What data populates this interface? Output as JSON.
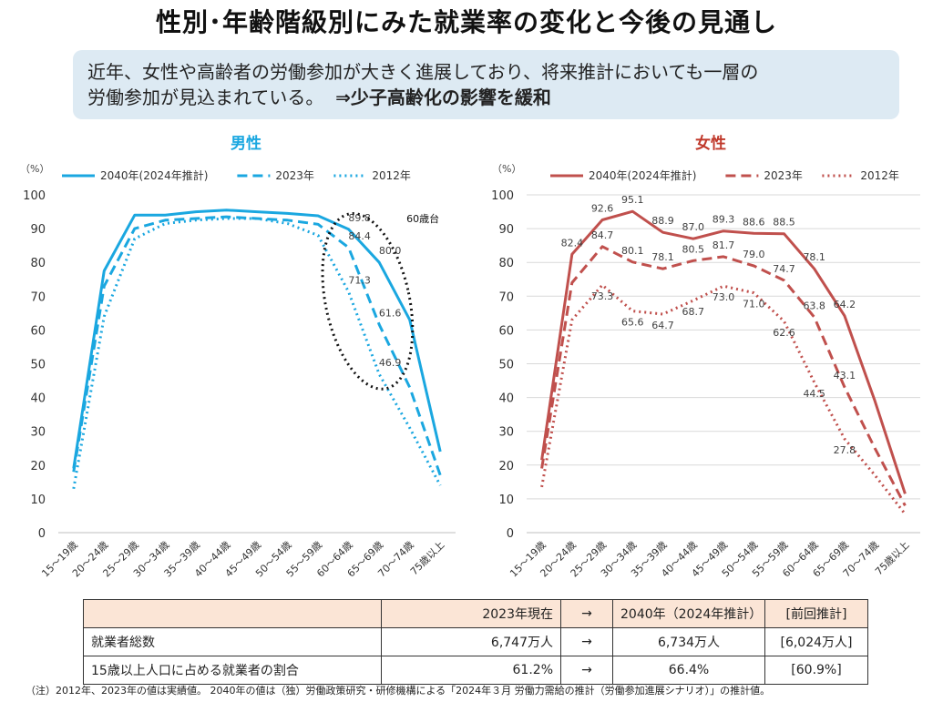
{
  "title": "性別･年齢階級別にみた就業率の変化と今後の見通し",
  "summary": {
    "line1": "近年、女性や高齢者の労働参加が大きく進展しており、将来推計においても一層の",
    "line2_prefix": "労働参加が見込まれている。",
    "line2_strong": "⇒少子高齢化の影響を緩和"
  },
  "colors": {
    "male": "#1aa7e0",
    "female": "#c0504d",
    "male_title": "#1aa7e0",
    "female_title": "#c0392b",
    "grid": "#d9d9d9",
    "summary_bg": "#ddeaf3",
    "table_header_bg": "#fbe5d6"
  },
  "chart_data": [
    {
      "type": "line",
      "title": "男性",
      "unit_label": "（%）",
      "ylim": [
        0,
        100
      ],
      "yticks": [
        0,
        10,
        20,
        30,
        40,
        50,
        60,
        70,
        80,
        90,
        100
      ],
      "grid": false,
      "legend_position": "top",
      "categories": [
        "15～19歳",
        "20～24歳",
        "25～29歳",
        "30～34歳",
        "35～39歳",
        "40～44歳",
        "45～49歳",
        "50～54歳",
        "55～59歳",
        "60～64歳",
        "65～69歳",
        "70～74歳",
        "75歳以上"
      ],
      "series": [
        {
          "name": "2040年(2024年推計)",
          "style": "solid",
          "values": [
            19.0,
            77.5,
            94.0,
            94.0,
            95.0,
            95.5,
            95.0,
            94.5,
            93.8,
            89.8,
            80.0,
            63.0,
            24.0
          ],
          "labels": {
            "9": "89.8",
            "10": "80.0"
          }
        },
        {
          "name": "2023年",
          "style": "dashed",
          "values": [
            18.0,
            73.0,
            90.0,
            92.5,
            93.0,
            93.5,
            93.0,
            92.5,
            91.3,
            84.4,
            61.6,
            43.0,
            17.0
          ],
          "labels": {
            "9": "84.4",
            "10": "61.6"
          }
        },
        {
          "name": "2012年",
          "style": "dotted",
          "values": [
            13.0,
            64.0,
            87.0,
            91.5,
            92.5,
            93.0,
            93.0,
            91.5,
            88.0,
            71.3,
            46.9,
            31.0,
            14.0
          ],
          "labels": {
            "9": "71.3",
            "10": "46.9"
          }
        }
      ],
      "annotation": {
        "text": "60歳台",
        "shape": "dotted-ellipse",
        "around_categories": [
          "60～64歳",
          "65～69歳"
        ]
      }
    },
    {
      "type": "line",
      "title": "女性",
      "unit_label": "（%）",
      "ylim": [
        0,
        100
      ],
      "yticks": [
        0,
        10,
        20,
        30,
        40,
        50,
        60,
        70,
        80,
        90,
        100
      ],
      "grid": true,
      "legend_position": "top",
      "categories": [
        "15～19歳",
        "20～24歳",
        "25～29歳",
        "30～34歳",
        "35～39歳",
        "40～44歳",
        "45～49歳",
        "50～54歳",
        "55～59歳",
        "60～64歳",
        "65～69歳",
        "70～74歳",
        "75歳以上"
      ],
      "series": [
        {
          "name": "2040年(2024年推計)",
          "style": "solid",
          "values": [
            21.5,
            82.4,
            92.6,
            95.1,
            88.9,
            87.0,
            89.3,
            88.6,
            88.5,
            78.1,
            64.2,
            39.0,
            11.5
          ],
          "labels": {
            "1": "82.4",
            "2": "92.6",
            "3": "95.1",
            "4": "88.9",
            "5": "87.0",
            "6": "89.3",
            "7": "88.6",
            "8": "88.5",
            "9": "78.1",
            "10": "64.2"
          }
        },
        {
          "name": "2023年",
          "style": "dashed",
          "values": [
            19.0,
            74.0,
            84.7,
            80.1,
            78.1,
            80.5,
            81.7,
            79.0,
            74.7,
            63.8,
            43.1,
            25.0,
            8.0
          ],
          "labels": {
            "2": "84.7",
            "3": "80.1",
            "4": "78.1",
            "5": "80.5",
            "6": "81.7",
            "7": "79.0",
            "8": "74.7",
            "9": "63.8",
            "10": "43.1"
          }
        },
        {
          "name": "2012年",
          "style": "dotted",
          "values": [
            13.5,
            63.0,
            73.3,
            65.6,
            64.7,
            68.7,
            73.0,
            71.0,
            62.6,
            44.5,
            27.8,
            17.0,
            5.5
          ],
          "labels": {
            "2": "73.3",
            "3": "65.6",
            "4": "64.7",
            "5": "68.7",
            "6": "73.0",
            "7": "71.0",
            "8": "62.6",
            "9": "44.5",
            "10": "27.8"
          }
        }
      ]
    }
  ],
  "table": {
    "headers": [
      "",
      "2023年現在",
      "→",
      "2040年（2024年推計）",
      "[前回推計]"
    ],
    "rows": [
      [
        "就業者総数",
        "6,747万人",
        "→",
        "6,734万人",
        "[6,024万人]"
      ],
      [
        "15歳以上人口に占める就業者の割合",
        "61.2%",
        "→",
        "66.4%",
        "[60.9%]"
      ]
    ]
  },
  "footnote": "（注）2012年、2023年の値は実績値。 2040年の値は（独）労働政策研究・研修機構による「2024年３月 労働力需給の推計（労働参加進展シナリオ）」の推計値。"
}
